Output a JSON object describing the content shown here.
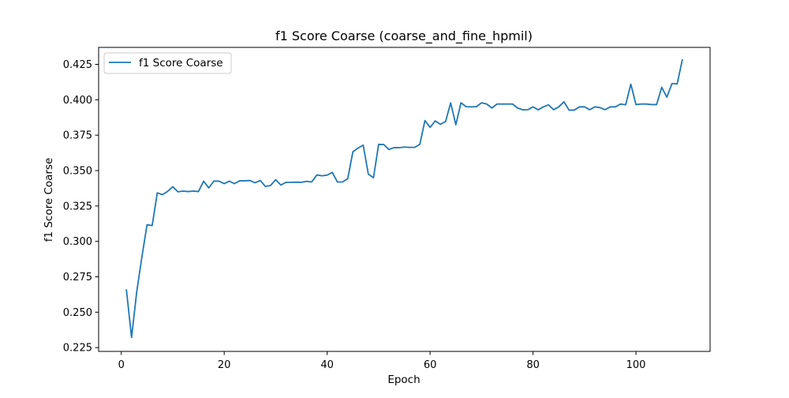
{
  "chart_data": {
    "type": "line",
    "title": "f1 Score Coarse (coarse_and_fine_hpmil)",
    "xlabel": "Epoch",
    "ylabel": "f1 Score Coarse",
    "xlim": [
      -4.4,
      114.4
    ],
    "ylim": [
      0.2223,
      0.437
    ],
    "xticks": [
      0,
      20,
      40,
      60,
      80,
      100
    ],
    "xtick_labels": [
      "0",
      "20",
      "40",
      "60",
      "80",
      "100"
    ],
    "yticks": [
      0.225,
      0.25,
      0.275,
      0.3,
      0.325,
      0.35,
      0.375,
      0.4,
      0.425
    ],
    "ytick_labels": [
      "0.225",
      "0.250",
      "0.275",
      "0.300",
      "0.325",
      "0.350",
      "0.375",
      "0.400",
      "0.425"
    ],
    "grid": false,
    "legend_position": "top-left",
    "series": [
      {
        "name": "f1 Score Coarse",
        "color": "#1f77b4",
        "x": [
          1,
          2,
          3,
          4,
          5,
          6,
          7,
          8,
          9,
          10,
          11,
          12,
          13,
          14,
          15,
          16,
          17,
          18,
          19,
          20,
          21,
          22,
          23,
          24,
          25,
          26,
          27,
          28,
          29,
          30,
          31,
          32,
          33,
          34,
          35,
          36,
          37,
          38,
          39,
          40,
          41,
          42,
          43,
          44,
          45,
          46,
          47,
          48,
          49,
          50,
          51,
          52,
          53,
          54,
          55,
          56,
          57,
          58,
          59,
          60,
          61,
          62,
          63,
          64,
          65,
          66,
          67,
          68,
          69,
          70,
          71,
          72,
          73,
          74,
          75,
          76,
          77,
          78,
          79,
          80,
          81,
          82,
          83,
          84,
          85,
          86,
          87,
          88,
          89,
          90,
          91,
          92,
          93,
          94,
          95,
          96,
          97,
          98,
          99,
          100,
          101,
          102,
          103,
          104,
          105,
          106,
          107,
          108,
          109
        ],
        "y": [
          0.2657,
          0.2322,
          0.2643,
          0.2888,
          0.3117,
          0.3112,
          0.3343,
          0.333,
          0.3353,
          0.3386,
          0.335,
          0.3355,
          0.3352,
          0.3355,
          0.3352,
          0.3425,
          0.3378,
          0.3426,
          0.3425,
          0.3408,
          0.3425,
          0.3408,
          0.3428,
          0.3428,
          0.343,
          0.3414,
          0.343,
          0.3388,
          0.3395,
          0.3435,
          0.3398,
          0.3417,
          0.3417,
          0.3418,
          0.3417,
          0.3424,
          0.342,
          0.3469,
          0.3463,
          0.3468,
          0.3487,
          0.3419,
          0.342,
          0.3443,
          0.3633,
          0.3659,
          0.368,
          0.3475,
          0.345,
          0.3685,
          0.3684,
          0.3649,
          0.3662,
          0.3662,
          0.3666,
          0.3664,
          0.3664,
          0.3685,
          0.3853,
          0.3805,
          0.3851,
          0.3827,
          0.3846,
          0.3978,
          0.3824,
          0.3979,
          0.3951,
          0.395,
          0.3951,
          0.3979,
          0.397,
          0.3942,
          0.397,
          0.397,
          0.397,
          0.397,
          0.3942,
          0.3929,
          0.393,
          0.395,
          0.3929,
          0.395,
          0.3964,
          0.393,
          0.395,
          0.3986,
          0.3927,
          0.3927,
          0.395,
          0.395,
          0.393,
          0.395,
          0.3945,
          0.393,
          0.395,
          0.395,
          0.397,
          0.3965,
          0.411,
          0.3966,
          0.397,
          0.397,
          0.3966,
          0.3966,
          0.4088,
          0.4018,
          0.4115,
          0.4112,
          0.4282
        ]
      }
    ]
  }
}
